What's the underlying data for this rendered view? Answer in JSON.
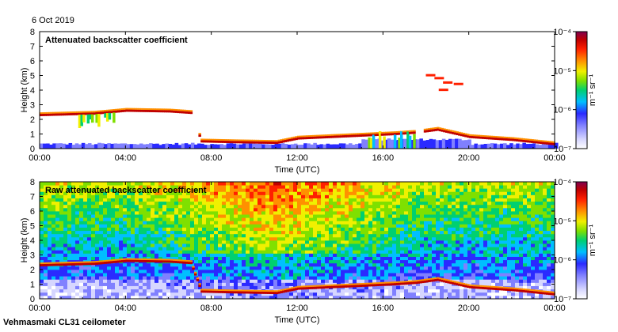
{
  "date_label": "6 Oct 2019",
  "footer": "Vehmasmaki CL31 ceilometer",
  "chart_data": [
    {
      "type": "heatmap",
      "title": "Attenuated backscatter coefficient",
      "xlabel": "Time (UTC)",
      "ylabel": "Height (km)",
      "xticks": [
        "00:00",
        "04:00",
        "08:00",
        "12:00",
        "16:00",
        "20:00",
        "00:00"
      ],
      "xlim_hours": [
        0,
        24
      ],
      "yticks": [
        "0",
        "1",
        "2",
        "3",
        "4",
        "5",
        "6",
        "7",
        "8"
      ],
      "ylim_km": [
        0,
        8
      ],
      "colorbar": {
        "label": "m⁻¹ sr⁻¹",
        "ticks": [
          "10⁻⁷",
          "10⁻⁶",
          "10⁻⁵",
          "10⁻⁴"
        ],
        "range": [
          1e-07,
          0.0001
        ],
        "scale": "log"
      },
      "cloud_layer_km": [
        [
          0.0,
          2.3
        ],
        [
          2.5,
          2.4
        ],
        [
          4.0,
          2.6
        ],
        [
          6.0,
          2.55
        ],
        [
          7.0,
          2.45
        ],
        [
          7.5,
          0.5
        ],
        [
          9.0,
          0.45
        ],
        [
          11.0,
          0.4
        ],
        [
          12.0,
          0.7
        ],
        [
          13.5,
          0.8
        ],
        [
          15.0,
          0.9
        ],
        [
          16.5,
          1.0
        ],
        [
          17.5,
          1.1
        ],
        [
          18.5,
          1.3
        ],
        [
          20.0,
          0.8
        ],
        [
          22.0,
          0.6
        ],
        [
          24.0,
          0.3
        ]
      ]
    },
    {
      "type": "heatmap",
      "title": "Raw attenuated backscatter coefficient",
      "xlabel": "Time (UTC)",
      "ylabel": "Height (km)",
      "xticks": [
        "00:00",
        "04:00",
        "08:00",
        "12:00",
        "16:00",
        "20:00",
        "00:00"
      ],
      "xlim_hours": [
        0,
        24
      ],
      "yticks": [
        "0",
        "1",
        "2",
        "3",
        "4",
        "5",
        "6",
        "7",
        "8"
      ],
      "ylim_km": [
        0,
        8
      ],
      "colorbar": {
        "label": "m⁻¹ sr⁻¹",
        "ticks": [
          "10⁻⁷",
          "10⁻⁶",
          "10⁻⁵",
          "10⁻⁴"
        ],
        "range": [
          1e-07,
          0.0001
        ],
        "scale": "log"
      }
    }
  ],
  "colors": {
    "colormap": [
      "#ffffff",
      "#d6d6ff",
      "#8080ff",
      "#2a2aff",
      "#00bfff",
      "#00d070",
      "#7fe000",
      "#f0f000",
      "#ff9000",
      "#ff2000",
      "#c00000",
      "#800050"
    ]
  }
}
